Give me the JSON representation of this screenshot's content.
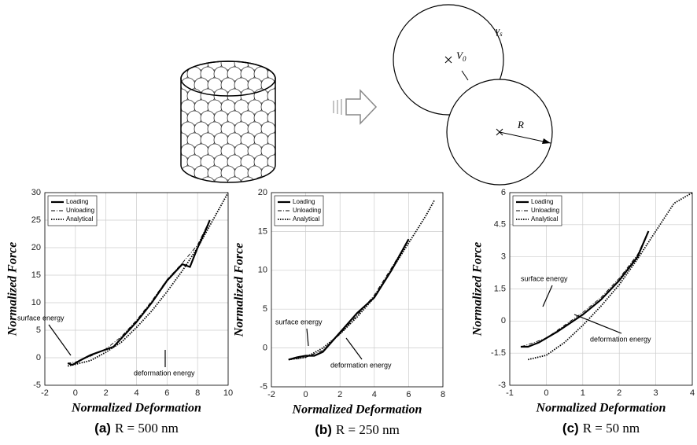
{
  "diagram": {
    "gamma": "γ",
    "gamma_sub": "s",
    "volume": "V",
    "volume_sub": "0",
    "radius": "R"
  },
  "chart_data": [
    {
      "type": "line",
      "panel": "(a)",
      "caption": "R = 500 nm",
      "x_label": "Normalized Deformation",
      "y_label": "Normalized Force",
      "xlim": [
        -2,
        10
      ],
      "xticks": [
        -2,
        0,
        2,
        4,
        6,
        8,
        10
      ],
      "ylim": [
        -5,
        30
      ],
      "yticks": [
        -5,
        0,
        5,
        10,
        15,
        20,
        25,
        30
      ],
      "grid": true,
      "legend": "upper-left",
      "annotations": [
        "surface energy",
        "deformation energy"
      ],
      "series": [
        {
          "name": "Loading",
          "color": "#000000",
          "line_style": "solid",
          "x": [
            -0.5,
            -0.2,
            0,
            0.3,
            1,
            2,
            2.5,
            3,
            4,
            5,
            5.5,
            6,
            6.5,
            7,
            7.5,
            8,
            8.5,
            8.8
          ],
          "values": [
            -1,
            -1.3,
            -1,
            -0.5,
            0.5,
            1.5,
            2,
            3.5,
            6.5,
            10,
            12,
            14,
            15.5,
            17,
            16.5,
            20,
            23,
            25
          ]
        },
        {
          "name": "Unloading",
          "color": "#000000",
          "line_style": "dashdot",
          "x": [
            8.8,
            8,
            7,
            6,
            5,
            4,
            3,
            2,
            1,
            0,
            -0.5
          ],
          "values": [
            25,
            20.5,
            17.2,
            14.2,
            10.3,
            6.8,
            3.8,
            1.6,
            0.3,
            -0.8,
            -1
          ]
        },
        {
          "name": "Analytical",
          "color": "#000000",
          "line_style": "dotted",
          "x": [
            -0.5,
            0,
            1,
            2,
            3,
            4,
            5,
            6,
            7,
            8,
            9,
            10
          ],
          "values": [
            -1.5,
            -1.2,
            -0.5,
            1,
            2.8,
            5.5,
            8.5,
            12,
            15.8,
            20,
            25,
            30
          ]
        }
      ]
    },
    {
      "type": "line",
      "panel": "(b)",
      "caption": "R = 250 nm",
      "x_label": "Normalized Deformation",
      "y_label": "Normalized Force",
      "xlim": [
        -2,
        8
      ],
      "xticks": [
        -2,
        0,
        2,
        4,
        6,
        8
      ],
      "ylim": [
        -5,
        20
      ],
      "yticks": [
        -5,
        0,
        5,
        10,
        15,
        20
      ],
      "grid": true,
      "legend": "upper-left",
      "annotations": [
        "surface energy",
        "deformation energy"
      ],
      "series": [
        {
          "name": "Loading",
          "color": "#000000",
          "line_style": "solid",
          "x": [
            -1,
            -0.5,
            0,
            0.5,
            1,
            2,
            3,
            3.5,
            4,
            5,
            5.5,
            6
          ],
          "values": [
            -1.5,
            -1.2,
            -1,
            -1,
            -0.5,
            2,
            4.5,
            5.5,
            6.5,
            10,
            12,
            14
          ]
        },
        {
          "name": "Unloading",
          "color": "#000000",
          "line_style": "dashdot",
          "x": [
            6,
            5,
            4,
            3,
            2,
            1,
            0,
            -0.5,
            -1
          ],
          "values": [
            14,
            10.3,
            6.8,
            4.2,
            1.8,
            -0.3,
            -1.2,
            -1.4,
            -1.5
          ]
        },
        {
          "name": "Analytical",
          "color": "#000000",
          "line_style": "dotted",
          "x": [
            -1,
            0,
            1,
            2,
            3,
            4,
            5,
            6,
            7,
            7.5
          ],
          "values": [
            -1.5,
            -1.2,
            0,
            1.8,
            4,
            6.5,
            10,
            13.5,
            17,
            19
          ]
        }
      ]
    },
    {
      "type": "line",
      "panel": "(c)",
      "caption": "R = 50 nm",
      "x_label": "Normalized Deformation",
      "y_label": "Normalized Force",
      "xlim": [
        -1,
        4
      ],
      "xticks": [
        -1,
        0,
        1,
        2,
        3,
        4
      ],
      "ylim": [
        -3,
        6
      ],
      "yticks": [
        -3,
        -1.5,
        0,
        1.5,
        3,
        4.5,
        6
      ],
      "grid": true,
      "legend": "upper-left",
      "annotations": [
        "surface energy",
        "deformation energy"
      ],
      "series": [
        {
          "name": "Loading",
          "color": "#000000",
          "line_style": "solid",
          "x": [
            -0.7,
            -0.5,
            -0.2,
            0.3,
            1,
            1.5,
            2,
            2.5,
            2.7,
            2.8
          ],
          "values": [
            -1.2,
            -1.2,
            -1,
            -0.5,
            0.3,
            1,
            1.9,
            3,
            3.8,
            4.2
          ]
        },
        {
          "name": "Unloading",
          "color": "#000000",
          "line_style": "dashdot",
          "x": [
            2.8,
            2.5,
            2,
            1.5,
            1,
            0.5,
            0,
            -0.5,
            -0.7
          ],
          "values": [
            4.2,
            3.1,
            2,
            1.1,
            0.4,
            -0.2,
            -0.8,
            -1.1,
            -1.2
          ]
        },
        {
          "name": "Analytical",
          "color": "#000000",
          "line_style": "dotted",
          "x": [
            -0.5,
            0,
            0.5,
            1,
            1.5,
            2,
            2.5,
            3,
            3.5,
            4
          ],
          "values": [
            -1.8,
            -1.6,
            -1,
            -0.2,
            0.7,
            1.7,
            2.9,
            4.2,
            5.5,
            6
          ]
        }
      ]
    }
  ]
}
